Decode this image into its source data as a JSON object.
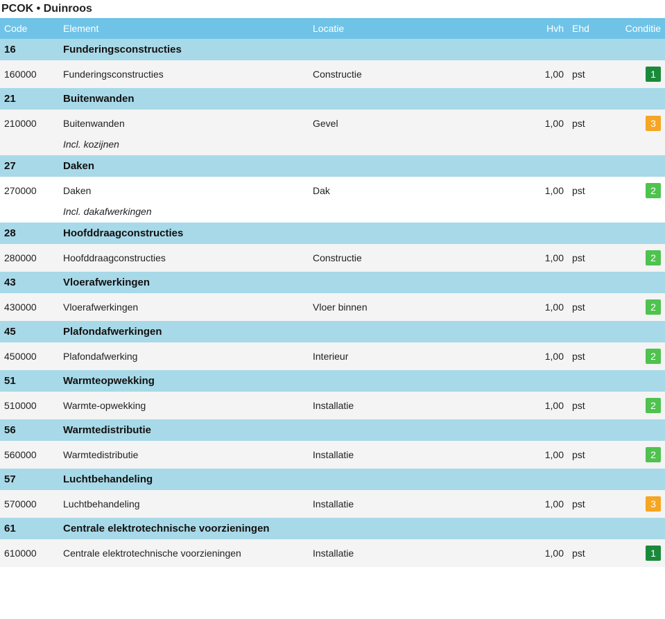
{
  "title": "PCOK • Duinroos",
  "colors": {
    "header_bg": "#6fc3e7",
    "section_bg": "#a8d9e8",
    "row_alt_bg": "#f4f4f4",
    "row_bg": "#ffffff",
    "text": "#222222",
    "header_text": "#ffffff"
  },
  "condition_colors": {
    "1": "#1a8a3a",
    "2": "#4fc24f",
    "3": "#f5a623"
  },
  "columns": {
    "code": "Code",
    "element": "Element",
    "locatie": "Locatie",
    "hvh": "Hvh",
    "ehd": "Ehd",
    "conditie": "Conditie"
  },
  "sections": [
    {
      "code": "16",
      "title": "Funderingsconstructies",
      "rows": [
        {
          "code": "160000",
          "element": "Funderingsconstructies",
          "locatie": "Constructie",
          "hvh": "1,00",
          "ehd": "pst",
          "cond": "1",
          "alt": true
        }
      ]
    },
    {
      "code": "21",
      "title": "Buitenwanden",
      "rows": [
        {
          "code": "210000",
          "element": "Buitenwanden",
          "locatie": "Gevel",
          "hvh": "1,00",
          "ehd": "pst",
          "cond": "3",
          "alt": true,
          "note": "Incl. kozijnen"
        }
      ]
    },
    {
      "code": "27",
      "title": "Daken",
      "rows": [
        {
          "code": "270000",
          "element": "Daken",
          "locatie": "Dak",
          "hvh": "1,00",
          "ehd": "pst",
          "cond": "2",
          "alt": false,
          "note": "Incl. dakafwerkingen"
        }
      ]
    },
    {
      "code": "28",
      "title": "Hoofddraagconstructies",
      "rows": [
        {
          "code": "280000",
          "element": "Hoofddraagconstructies",
          "locatie": "Constructie",
          "hvh": "1,00",
          "ehd": "pst",
          "cond": "2",
          "alt": true
        }
      ]
    },
    {
      "code": "43",
      "title": "Vloerafwerkingen",
      "rows": [
        {
          "code": "430000",
          "element": "Vloerafwerkingen",
          "locatie": "Vloer binnen",
          "hvh": "1,00",
          "ehd": "pst",
          "cond": "2",
          "alt": true
        }
      ]
    },
    {
      "code": "45",
      "title": "Plafondafwerkingen",
      "rows": [
        {
          "code": "450000",
          "element": "Plafondafwerking",
          "locatie": "Interieur",
          "hvh": "1,00",
          "ehd": "pst",
          "cond": "2",
          "alt": true
        }
      ]
    },
    {
      "code": "51",
      "title": "Warmteopwekking",
      "rows": [
        {
          "code": "510000",
          "element": "Warmte-opwekking",
          "locatie": "Installatie",
          "hvh": "1,00",
          "ehd": "pst",
          "cond": "2",
          "alt": true
        }
      ]
    },
    {
      "code": "56",
      "title": "Warmtedistributie",
      "rows": [
        {
          "code": "560000",
          "element": "Warmtedistributie",
          "locatie": "Installatie",
          "hvh": "1,00",
          "ehd": "pst",
          "cond": "2",
          "alt": true
        }
      ]
    },
    {
      "code": "57",
      "title": "Luchtbehandeling",
      "rows": [
        {
          "code": "570000",
          "element": "Luchtbehandeling",
          "locatie": "Installatie",
          "hvh": "1,00",
          "ehd": "pst",
          "cond": "3",
          "alt": true
        }
      ]
    },
    {
      "code": "61",
      "title": "Centrale elektrotechnische voorzieningen",
      "rows": [
        {
          "code": "610000",
          "element": "Centrale elektrotechnische voorzieningen",
          "locatie": "Installatie",
          "hvh": "1,00",
          "ehd": "pst",
          "cond": "1",
          "alt": true
        }
      ]
    }
  ]
}
